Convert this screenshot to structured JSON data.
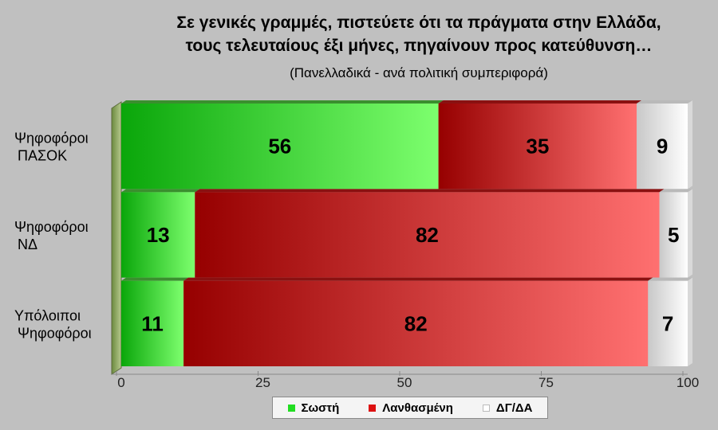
{
  "chart_data": {
    "type": "bar",
    "orientation": "horizontal",
    "stacked": true,
    "title_lines": [
      "Σε γενικές γραμμές, πιστεύετε ότι τα πράγματα στην Ελλάδα,",
      "τους τελευταίους έξι μήνες, πηγαίνουν προς κατεύθυνση…"
    ],
    "subtitle": "(Πανελλαδικά - ανά πολιτική συμπεριφορά)",
    "categories": [
      [
        "Ψηφοφόροι",
        "ΠΑΣΟΚ"
      ],
      [
        "Ψηφοφόροι",
        "ΝΔ"
      ],
      [
        "Υπόλοιποι",
        "Ψηφοφόροι"
      ]
    ],
    "series": [
      {
        "name": "Σωστή",
        "values": [
          56,
          13,
          11
        ],
        "color": "#22cc22"
      },
      {
        "name": "Λανθασμένη",
        "values": [
          35,
          82,
          82
        ],
        "color": "#cc1111"
      },
      {
        "name": "ΔΓ/ΔΑ",
        "values": [
          9,
          5,
          7
        ],
        "color": "#ffffff"
      }
    ],
    "xlim": [
      0,
      100
    ],
    "xticks": [
      "0",
      "25",
      "50",
      "75",
      "100"
    ],
    "legend_position": "bottom"
  }
}
